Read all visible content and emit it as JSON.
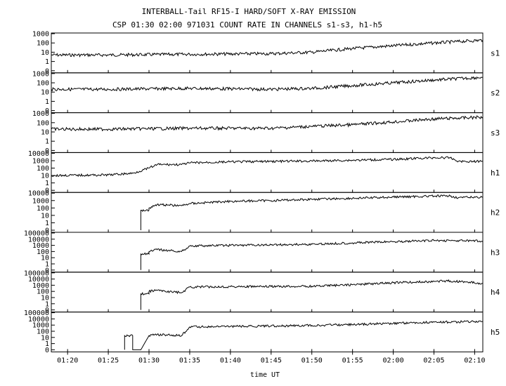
{
  "title": "INTERBALL-Tail RF15-I HARD/SOFT X-RAY EMISSION",
  "subtitle": "CSP 01:30 02:00 971031  COUNT RATE IN CHANNELS s1-s3, h1-h5",
  "chart_data": {
    "type": "line",
    "title": "INTERBALL-Tail RF15-I HARD/SOFT X-RAY EMISSION",
    "subtitle": "CSP 01:30 02:00 971031  COUNT RATE IN CHANNELS s1-s3, h1-h5",
    "xlabel": "time UT",
    "x_range": [
      "01:18",
      "02:11"
    ],
    "x_ticks": [
      "01:20",
      "01:25",
      "01:30",
      "01:35",
      "01:40",
      "01:45",
      "01:50",
      "01:55",
      "02:00",
      "02:05",
      "02:10"
    ],
    "y_scale": "log",
    "grid": false,
    "panels": [
      {
        "name": "s1",
        "y_ticks": [
          "1000",
          "100",
          "10",
          "1",
          "0"
        ],
        "points": [
          [
            "01:18",
            5
          ],
          [
            "01:25",
            5
          ],
          [
            "01:35",
            6
          ],
          [
            "01:45",
            7
          ],
          [
            "01:50",
            10
          ],
          [
            "01:55",
            25
          ],
          [
            "02:00",
            50
          ],
          [
            "02:05",
            100
          ],
          [
            "02:11",
            200
          ]
        ]
      },
      {
        "name": "s2",
        "y_ticks": [
          "1000",
          "100",
          "10",
          "1",
          "0"
        ],
        "points": [
          [
            "01:18",
            20
          ],
          [
            "01:25",
            20
          ],
          [
            "01:35",
            25
          ],
          [
            "01:45",
            20
          ],
          [
            "01:50",
            25
          ],
          [
            "01:55",
            50
          ],
          [
            "02:00",
            100
          ],
          [
            "02:05",
            200
          ],
          [
            "02:11",
            400
          ]
        ]
      },
      {
        "name": "s3",
        "y_ticks": [
          "1000",
          "100",
          "10",
          "1",
          "0"
        ],
        "points": [
          [
            "01:18",
            20
          ],
          [
            "01:25",
            20
          ],
          [
            "01:35",
            25
          ],
          [
            "01:45",
            25
          ],
          [
            "01:50",
            40
          ],
          [
            "01:55",
            60
          ],
          [
            "02:00",
            120
          ],
          [
            "02:05",
            250
          ],
          [
            "02:11",
            400
          ]
        ]
      },
      {
        "name": "h1",
        "y_ticks": [
          "10000",
          "1000",
          "100",
          "10",
          "1",
          "0"
        ],
        "points": [
          [
            "01:18",
            10
          ],
          [
            "01:25",
            12
          ],
          [
            "01:28",
            20
          ],
          [
            "01:30",
            100
          ],
          [
            "01:31",
            300
          ],
          [
            "01:34",
            300
          ],
          [
            "01:35",
            500
          ],
          [
            "01:40",
            700
          ],
          [
            "01:45",
            800
          ],
          [
            "01:50",
            900
          ],
          [
            "02:00",
            1500
          ],
          [
            "02:05",
            2500
          ],
          [
            "02:07",
            2500
          ],
          [
            "02:08",
            800
          ],
          [
            "02:11",
            800
          ]
        ]
      },
      {
        "name": "h2",
        "y_ticks": [
          "10000",
          "1000",
          "100",
          "10",
          "1",
          "0"
        ],
        "points": [
          [
            "01:29",
            0
          ],
          [
            "01:29",
            50
          ],
          [
            "01:30",
            50
          ],
          [
            "01:30",
            100
          ],
          [
            "01:31",
            300
          ],
          [
            "01:34",
            200
          ],
          [
            "01:35",
            400
          ],
          [
            "01:40",
            800
          ],
          [
            "01:45",
            1000
          ],
          [
            "01:50",
            1500
          ],
          [
            "01:55",
            2000
          ],
          [
            "02:00",
            3000
          ],
          [
            "02:05",
            4000
          ],
          [
            "02:07",
            4000
          ],
          [
            "02:08",
            2500
          ],
          [
            "02:11",
            3000
          ]
        ]
      },
      {
        "name": "h3",
        "y_ticks": [
          "100000",
          "10000",
          "1000",
          "100",
          "10",
          "1",
          "0"
        ],
        "points": [
          [
            "01:29",
            0
          ],
          [
            "01:29",
            40
          ],
          [
            "01:30",
            40
          ],
          [
            "01:30",
            100
          ],
          [
            "01:31",
            200
          ],
          [
            "01:34",
            100
          ],
          [
            "01:35",
            800
          ],
          [
            "01:40",
            1000
          ],
          [
            "01:45",
            1200
          ],
          [
            "01:50",
            1500
          ],
          [
            "01:55",
            2500
          ],
          [
            "02:00",
            4000
          ],
          [
            "02:05",
            6000
          ],
          [
            "02:07",
            6000
          ],
          [
            "02:11",
            5000
          ]
        ]
      },
      {
        "name": "h4",
        "y_ticks": [
          "100000",
          "10000",
          "1000",
          "100",
          "10",
          "1",
          "0"
        ],
        "points": [
          [
            "01:29",
            0
          ],
          [
            "01:29",
            40
          ],
          [
            "01:30",
            40
          ],
          [
            "01:30",
            100
          ],
          [
            "01:31",
            150
          ],
          [
            "01:34",
            60
          ],
          [
            "01:35",
            500
          ],
          [
            "01:40",
            600
          ],
          [
            "01:45",
            600
          ],
          [
            "01:50",
            700
          ],
          [
            "01:55",
            1200
          ],
          [
            "02:00",
            2500
          ],
          [
            "02:05",
            4000
          ],
          [
            "02:07",
            5000
          ],
          [
            "02:11",
            2000
          ]
        ]
      },
      {
        "name": "h5",
        "y_ticks": [
          "100000",
          "10000",
          "1000",
          "100",
          "10",
          "1",
          "0"
        ],
        "points": [
          [
            "01:27",
            0
          ],
          [
            "01:27",
            20
          ],
          [
            "01:28",
            20
          ],
          [
            "01:28",
            0
          ],
          [
            "01:29",
            0
          ],
          [
            "01:30",
            20
          ],
          [
            "01:31",
            30
          ],
          [
            "01:34",
            20
          ],
          [
            "01:35",
            500
          ],
          [
            "01:40",
            600
          ],
          [
            "01:45",
            700
          ],
          [
            "01:50",
            900
          ],
          [
            "01:55",
            1200
          ],
          [
            "02:00",
            2000
          ],
          [
            "02:05",
            3000
          ],
          [
            "02:10",
            3500
          ],
          [
            "02:11",
            4000
          ]
        ]
      }
    ]
  }
}
